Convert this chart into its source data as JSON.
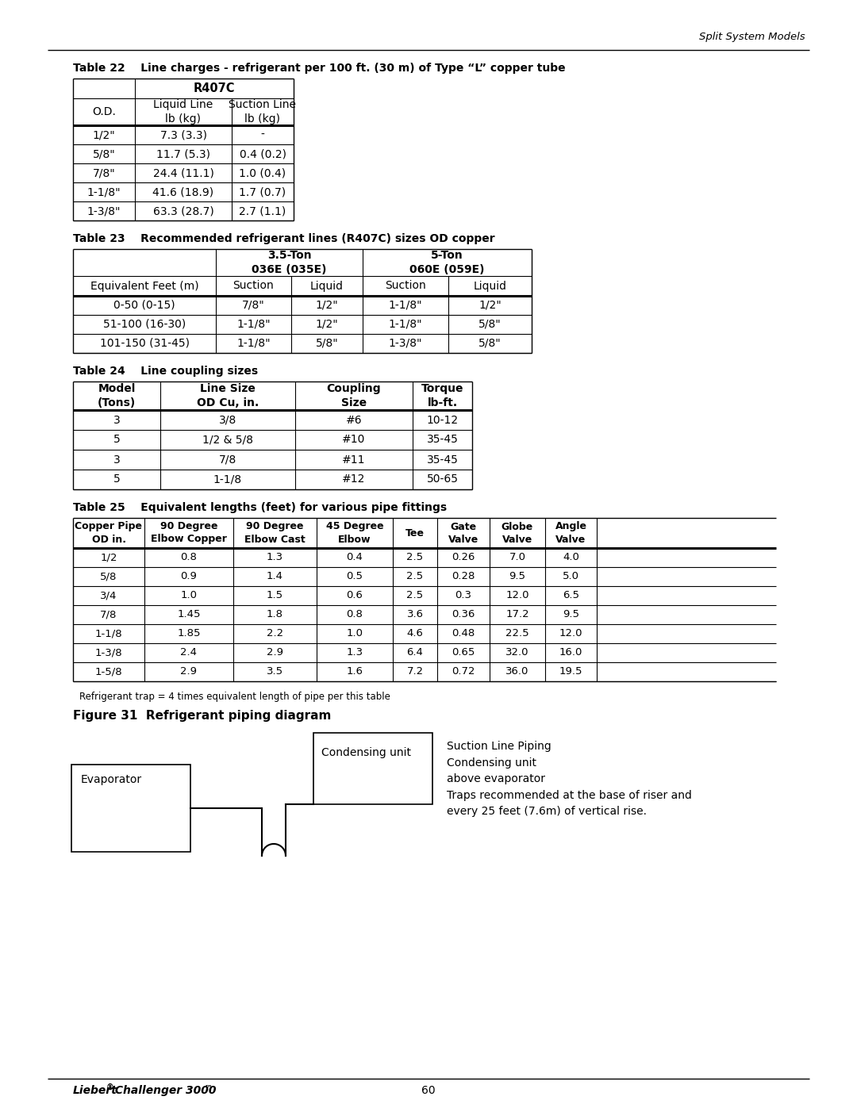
{
  "page_title_right": "Split System Models",
  "footer_left": "Liebert",
  "footer_reg": "®",
  "footer_right_text": " Challenger 3000",
  "footer_tm": "™",
  "footer_page": "60",
  "table22_title": "Table 22    Line charges - refrigerant per 100 ft. (30 m) of Type “L” copper tube",
  "table22_data": [
    [
      "1/2\"",
      "7.3 (3.3)",
      "-"
    ],
    [
      "5/8\"",
      "11.7 (5.3)",
      "0.4 (0.2)"
    ],
    [
      "7/8\"",
      "24.4 (11.1)",
      "1.0 (0.4)"
    ],
    [
      "1-1/8\"",
      "41.6 (18.9)",
      "1.7 (0.7)"
    ],
    [
      "1-3/8\"",
      "63.3 (28.7)",
      "2.7 (1.1)"
    ]
  ],
  "table23_title": "Table 23    Recommended refrigerant lines (R407C) sizes OD copper",
  "table23_data": [
    [
      "0-50 (0-15)",
      "7/8\"",
      "1/2\"",
      "1-1/8\"",
      "1/2\""
    ],
    [
      "51-100 (16-30)",
      "1-1/8\"",
      "1/2\"",
      "1-1/8\"",
      "5/8\""
    ],
    [
      "101-150 (31-45)",
      "1-1/8\"",
      "5/8\"",
      "1-3/8\"",
      "5/8\""
    ]
  ],
  "table24_title": "Table 24    Line coupling sizes",
  "table24_col_headers": [
    "Model\n(Tons)",
    "Line Size\nOD Cu, in.",
    "Coupling\nSize",
    "Torque\nlb-ft."
  ],
  "table24_data": [
    [
      "3",
      "3/8",
      "#6",
      "10-12"
    ],
    [
      "5",
      "1/2 & 5/8",
      "#10",
      "35-45"
    ],
    [
      "3",
      "7/8",
      "#11",
      "35-45"
    ],
    [
      "5",
      "1-1/8",
      "#12",
      "50-65"
    ]
  ],
  "table25_title": "Table 25    Equivalent lengths (feet) for various pipe fittings",
  "table25_col_headers": [
    "Copper Pipe\nOD in.",
    "90 Degree\nElbow Copper",
    "90 Degree\nElbow Cast",
    "45 Degree\nElbow",
    "Tee",
    "Gate\nValve",
    "Globe\nValve",
    "Angle\nValve"
  ],
  "table25_data": [
    [
      "1/2",
      "0.8",
      "1.3",
      "0.4",
      "2.5",
      "0.26",
      "7.0",
      "4.0"
    ],
    [
      "5/8",
      "0.9",
      "1.4",
      "0.5",
      "2.5",
      "0.28",
      "9.5",
      "5.0"
    ],
    [
      "3/4",
      "1.0",
      "1.5",
      "0.6",
      "2.5",
      "0.3",
      "12.0",
      "6.5"
    ],
    [
      "7/8",
      "1.45",
      "1.8",
      "0.8",
      "3.6",
      "0.36",
      "17.2",
      "9.5"
    ],
    [
      "1-1/8",
      "1.85",
      "2.2",
      "1.0",
      "4.6",
      "0.48",
      "22.5",
      "12.0"
    ],
    [
      "1-3/8",
      "2.4",
      "2.9",
      "1.3",
      "6.4",
      "0.65",
      "32.0",
      "16.0"
    ],
    [
      "1-5/8",
      "2.9",
      "3.5",
      "1.6",
      "7.2",
      "0.72",
      "36.0",
      "19.5"
    ]
  ],
  "table25_footnote": "Refrigerant trap = 4 times equivalent length of pipe per this table",
  "figure31_title": "Figure 31  Refrigerant piping diagram",
  "figure31_condensing_label": "Condensing unit",
  "figure31_evaporator_label": "Evaporator",
  "figure31_text": "Suction Line Piping\nCondensing unit\nabove evaporator\nTraps recommended at the base of riser and\nevery 25 feet (7.6m) of vertical rise."
}
